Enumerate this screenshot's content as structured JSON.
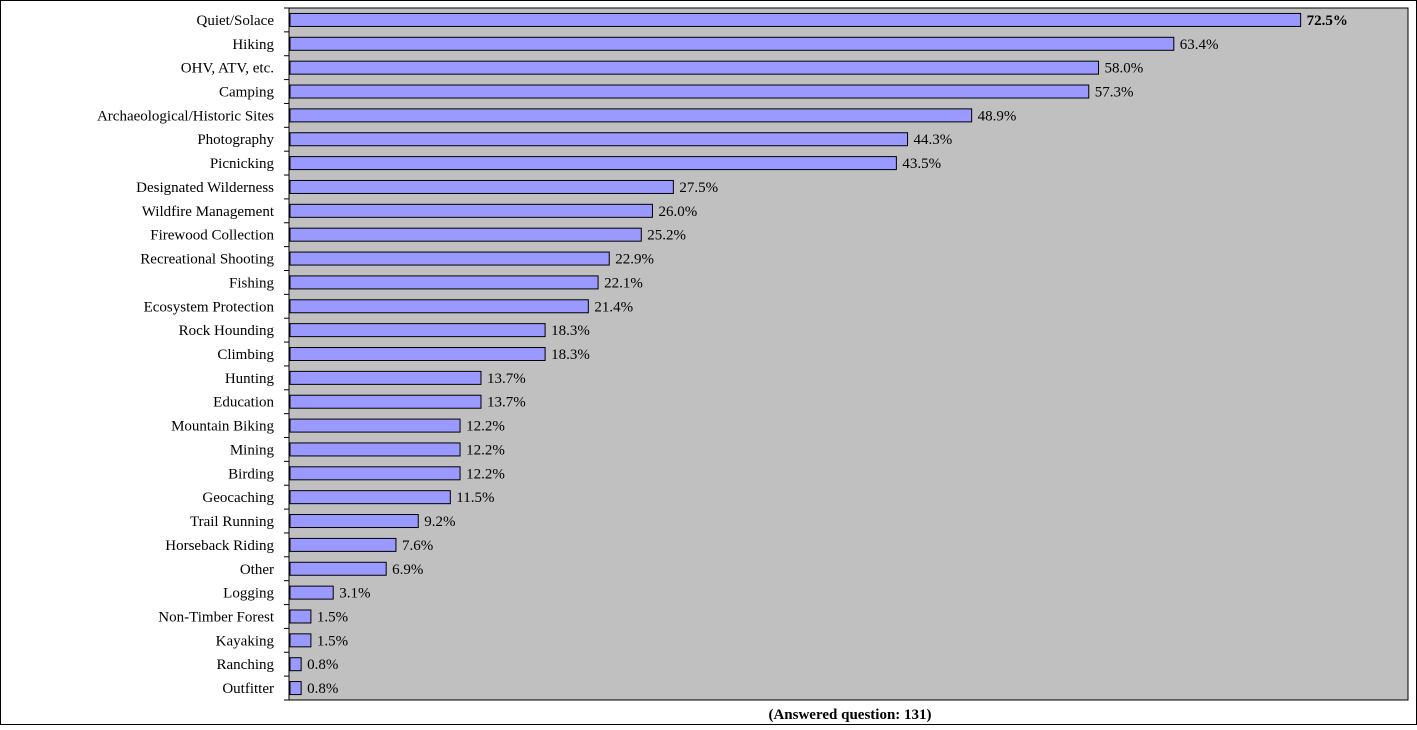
{
  "chart_data": {
    "type": "bar",
    "orientation": "horizontal",
    "categories": [
      "Quiet/Solace",
      "Hiking",
      "OHV, ATV, etc.",
      "Camping",
      "Archaeological/Historic Sites",
      "Photography",
      "Picnicking",
      "Designated Wilderness",
      "Wildfire Management",
      "Firewood Collection",
      "Recreational Shooting",
      "Fishing",
      "Ecosystem Protection",
      "Rock Hounding",
      "Climbing",
      "Hunting",
      "Education",
      "Mountain Biking",
      "Mining",
      "Birding",
      "Geocaching",
      "Trail Running",
      "Horseback Riding",
      "Other",
      "Logging",
      "Non-Timber Forest",
      "Kayaking",
      "Ranching",
      "Outfitter"
    ],
    "values": [
      72.5,
      63.4,
      58.0,
      57.3,
      48.9,
      44.3,
      43.5,
      27.5,
      26.0,
      25.2,
      22.9,
      22.1,
      21.4,
      18.3,
      18.3,
      13.7,
      13.7,
      12.2,
      12.2,
      12.2,
      11.5,
      9.2,
      7.6,
      6.9,
      3.1,
      1.5,
      1.5,
      0.8,
      0.8
    ],
    "value_labels": [
      "72.5%",
      "63.4%",
      "58.0%",
      "57.3%",
      "48.9%",
      "44.3%",
      "43.5%",
      "27.5%",
      "26.0%",
      "25.2%",
      "22.9%",
      "22.1%",
      "21.4%",
      "18.3%",
      "18.3%",
      "13.7%",
      "13.7%",
      "12.2%",
      "12.2%",
      "12.2%",
      "11.5%",
      "9.2%",
      "7.6%",
      "6.9%",
      "3.1%",
      "1.5%",
      "1.5%",
      "0.8%",
      "0.8%"
    ],
    "highlighted_index": 0,
    "title": "",
    "footnote": "(Answered question: 131)",
    "xlim": [
      0,
      80
    ],
    "grid": false,
    "colors": {
      "bar_fill": "#9999ff",
      "bar_stroke": "#000000",
      "plot_background": "#c0c0c0",
      "text": "#000000"
    }
  }
}
